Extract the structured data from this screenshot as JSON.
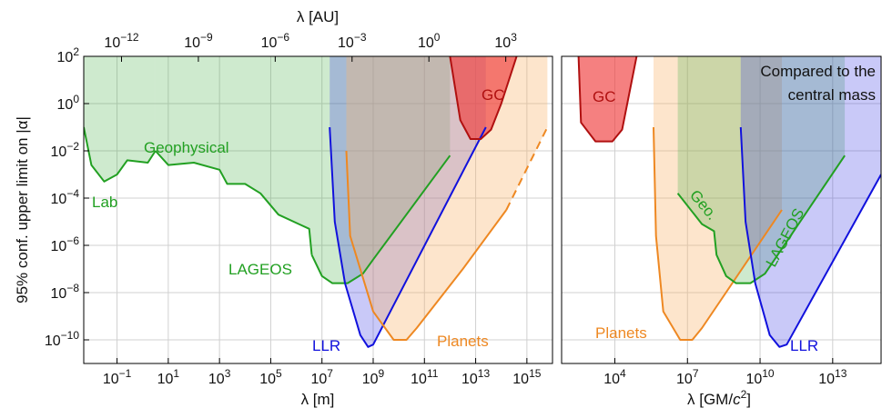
{
  "chart_data": [
    {
      "type": "area",
      "panel": "left",
      "ylabel": "95% conf. upper limit on |α|",
      "xlabel": "λ [m]",
      "xlabel_top": "λ [AU]",
      "xscale": "log",
      "yscale": "log",
      "xlim_log10": [
        -2.3,
        16
      ],
      "ylim_log10": [
        -11,
        2
      ],
      "grid": true,
      "x_ticks": [
        {
          "exp": -1,
          "label": "10",
          "sup": "−1"
        },
        {
          "exp": 1,
          "label": "10",
          "sup": "1"
        },
        {
          "exp": 3,
          "label": "10",
          "sup": "3"
        },
        {
          "exp": 5,
          "label": "10",
          "sup": "5"
        },
        {
          "exp": 7,
          "label": "10",
          "sup": "7"
        },
        {
          "exp": 9,
          "label": "10",
          "sup": "9"
        },
        {
          "exp": 11,
          "label": "10",
          "sup": "11"
        },
        {
          "exp": 13,
          "label": "10",
          "sup": "13"
        },
        {
          "exp": 15,
          "label": "10",
          "sup": "15"
        }
      ],
      "x_top_ticks": [
        {
          "exp_au": -12,
          "label": "10",
          "sup": "−12"
        },
        {
          "exp_au": -9,
          "label": "10",
          "sup": "−9"
        },
        {
          "exp_au": -6,
          "label": "10",
          "sup": "−6"
        },
        {
          "exp_au": -3,
          "label": "10",
          "sup": "−3"
        },
        {
          "exp_au": 0,
          "label": "10",
          "sup": "0"
        },
        {
          "exp_au": 3,
          "label": "10",
          "sup": "3"
        }
      ],
      "y_ticks": [
        {
          "exp": 2,
          "label": "10",
          "sup": "2"
        },
        {
          "exp": 0,
          "label": "10",
          "sup": "0"
        },
        {
          "exp": -2,
          "label": "10",
          "sup": "−2"
        },
        {
          "exp": -4,
          "label": "10",
          "sup": "−4"
        },
        {
          "exp": -6,
          "label": "10",
          "sup": "−6"
        },
        {
          "exp": -8,
          "label": "10",
          "sup": "−8"
        },
        {
          "exp": -10,
          "label": "10",
          "sup": "−10"
        }
      ],
      "series": [
        {
          "name": "Lab",
          "color": "#22a022",
          "fill": "rgba(60,170,60,0.25)",
          "log10_points": [
            [
              -2.3,
              -1.0
            ],
            [
              -2.0,
              -2.6
            ],
            [
              -1.5,
              -3.3
            ],
            [
              -1.0,
              -3.0
            ],
            [
              -0.6,
              -2.4
            ],
            [
              0.2,
              -2.5
            ],
            [
              0.5,
              -2.0
            ]
          ]
        },
        {
          "name": "Geophysical",
          "color": "#22a022",
          "fill": "rgba(60,170,60,0.25)",
          "log10_points": [
            [
              0.5,
              -2.0
            ],
            [
              1.0,
              -2.6
            ],
            [
              2.0,
              -2.5
            ],
            [
              3.0,
              -2.8
            ],
            [
              3.3,
              -3.4
            ],
            [
              4.0,
              -3.4
            ],
            [
              4.6,
              -3.8
            ],
            [
              5.3,
              -4.7
            ],
            [
              6.1,
              -5.1
            ],
            [
              6.5,
              -5.3
            ],
            [
              6.6,
              -6.4
            ]
          ]
        },
        {
          "name": "LAGEOS",
          "color": "#22a022",
          "fill": "rgba(60,170,60,0.25)",
          "log10_points": [
            [
              6.6,
              -6.4
            ],
            [
              7.0,
              -7.3
            ],
            [
              7.4,
              -7.6
            ],
            [
              8.0,
              -7.6
            ],
            [
              8.6,
              -7.2
            ],
            [
              9.0,
              -6.6
            ],
            [
              12.0,
              -2.2
            ]
          ]
        },
        {
          "name": "LLR",
          "color": "#1111dd",
          "fill": "rgba(60,60,230,0.28)",
          "log10_points": [
            [
              7.3,
              -1.0
            ],
            [
              7.5,
              -5.0
            ],
            [
              7.9,
              -7.6
            ],
            [
              8.5,
              -9.8
            ],
            [
              8.8,
              -10.3
            ],
            [
              9.0,
              -10.2
            ],
            [
              13.4,
              -1.0
            ]
          ]
        },
        {
          "name": "Planets",
          "color": "#ee8822",
          "fill": "rgba(250,180,110,0.35)",
          "log10_points": [
            [
              7.95,
              -2.0
            ],
            [
              8.1,
              -5.6
            ],
            [
              9.0,
              -8.8
            ],
            [
              9.8,
              -10.0
            ],
            [
              10.3,
              -10.0
            ],
            [
              10.7,
              -9.5
            ],
            [
              12.5,
              -7.0
            ],
            [
              14.2,
              -4.5
            ]
          ],
          "dashed_extension": [
            [
              14.2,
              -4.5
            ],
            [
              15.8,
              -1.0
            ]
          ]
        },
        {
          "name": "GC",
          "color": "#b01010",
          "fill": "rgba(240,60,60,0.65)",
          "log10_points": [
            [
              12.0,
              2.0
            ],
            [
              12.4,
              -0.7
            ],
            [
              12.8,
              -1.5
            ],
            [
              13.2,
              -1.5
            ],
            [
              13.6,
              -1.1
            ],
            [
              14.0,
              0.0
            ],
            [
              14.6,
              2.0
            ]
          ]
        }
      ],
      "annotations": [
        {
          "text": "Lab",
          "color": "#22a022"
        },
        {
          "text": "Geophysical",
          "color": "#22a022"
        },
        {
          "text": "LAGEOS",
          "color": "#22a022"
        },
        {
          "text": "LLR",
          "color": "#1111dd"
        },
        {
          "text": "Planets",
          "color": "#ee8822"
        },
        {
          "text": "GC",
          "color": "#b01010"
        }
      ]
    },
    {
      "type": "area",
      "panel": "right",
      "xlabel": "λ [GM/c²]",
      "xlabel_parts": {
        "pre": "λ [GM/",
        "c": "c",
        "sup": "2",
        "post": "]"
      },
      "xscale": "log",
      "yscale": "log",
      "xlim_log10": [
        1.8,
        15
      ],
      "ylim_log10": [
        -11,
        2
      ],
      "grid": true,
      "x_ticks": [
        {
          "exp": 4,
          "label": "10",
          "sup": "4"
        },
        {
          "exp": 7,
          "label": "10",
          "sup": "7"
        },
        {
          "exp": 10,
          "label": "10",
          "sup": "10"
        },
        {
          "exp": 13,
          "label": "10",
          "sup": "13"
        }
      ],
      "series": [
        {
          "name": "GC",
          "color": "#b01010",
          "fill": "rgba(240,60,60,0.65)",
          "log10_points": [
            [
              2.5,
              2.0
            ],
            [
              2.6,
              -0.8
            ],
            [
              3.2,
              -1.6
            ],
            [
              3.9,
              -1.6
            ],
            [
              4.3,
              -1.1
            ],
            [
              4.9,
              2.0
            ]
          ]
        },
        {
          "name": "Planets",
          "color": "#ee8822",
          "fill": "rgba(250,180,110,0.35)",
          "log10_points": [
            [
              5.6,
              -1.0
            ],
            [
              5.7,
              -5.6
            ],
            [
              6.0,
              -8.8
            ],
            [
              6.7,
              -10.0
            ],
            [
              7.2,
              -10.0
            ],
            [
              7.6,
              -9.5
            ],
            [
              10.9,
              -4.5
            ]
          ]
        },
        {
          "name": "Geo.",
          "color": "#22a022",
          "fill": "rgba(60,170,60,0.25)",
          "log10_points": [
            [
              6.6,
              -3.8
            ],
            [
              7.6,
              -5.1
            ],
            [
              8.1,
              -5.4
            ],
            [
              8.2,
              -6.4
            ],
            [
              8.6,
              -7.3
            ],
            [
              9.0,
              -7.6
            ],
            [
              9.6,
              -7.6
            ],
            [
              10.2,
              -7.2
            ],
            [
              10.6,
              -6.6
            ],
            [
              13.5,
              -2.2
            ]
          ]
        },
        {
          "name": "LLR",
          "color": "#1111dd",
          "fill": "rgba(60,60,230,0.28)",
          "log10_points": [
            [
              9.2,
              -1.0
            ],
            [
              9.4,
              -5.0
            ],
            [
              9.8,
              -7.6
            ],
            [
              10.4,
              -9.8
            ],
            [
              10.8,
              -10.3
            ],
            [
              11.1,
              -10.2
            ],
            [
              15.0,
              -3.0
            ]
          ]
        }
      ],
      "annotations": [
        {
          "text": "GC",
          "color": "#b01010"
        },
        {
          "text": "Planets",
          "color": "#ee8822"
        },
        {
          "text": "Geo.",
          "color": "#22a022"
        },
        {
          "text": "LAGEOS",
          "color": "#22a022"
        },
        {
          "text": "LLR",
          "color": "#1111dd"
        },
        {
          "text": "Compared to the",
          "color": "#111111"
        },
        {
          "text": "central mass",
          "color": "#111111"
        }
      ]
    }
  ]
}
